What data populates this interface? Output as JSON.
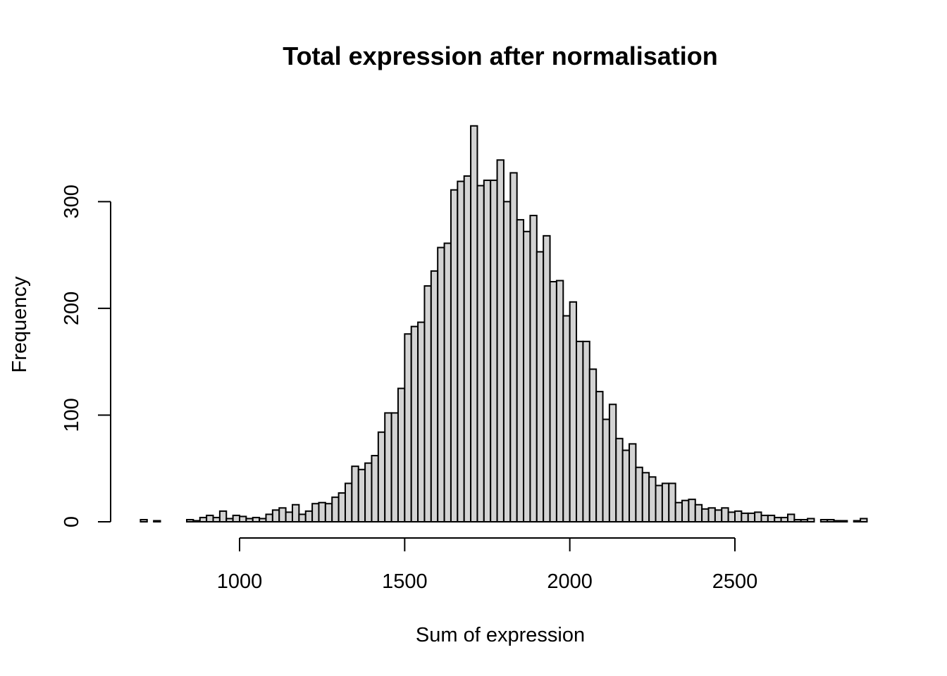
{
  "chart_data": {
    "type": "bar",
    "title": "Total expression after normalisation",
    "xlabel": "Sum of expression",
    "ylabel": "Frequency",
    "bin_width": 20,
    "x_start": 700,
    "xlim": [
      700,
      2880
    ],
    "ylim": [
      0,
      400
    ],
    "x_ticks": [
      1000,
      1500,
      2000,
      2500
    ],
    "y_ticks": [
      0,
      100,
      200,
      300
    ],
    "values": [
      2,
      0,
      1,
      0,
      0,
      0,
      0,
      2,
      1,
      4,
      6,
      4,
      10,
      3,
      6,
      5,
      3,
      4,
      3,
      7,
      11,
      13,
      9,
      16,
      7,
      10,
      17,
      18,
      17,
      23,
      27,
      36,
      52,
      49,
      55,
      62,
      84,
      102,
      102,
      125,
      176,
      183,
      187,
      221,
      235,
      257,
      261,
      311,
      319,
      324,
      371,
      315,
      320,
      320,
      339,
      300,
      327,
      283,
      272,
      287,
      253,
      268,
      225,
      226,
      193,
      206,
      169,
      169,
      143,
      122,
      96,
      110,
      78,
      67,
      73,
      51,
      46,
      42,
      34,
      36,
      36,
      18,
      20,
      21,
      16,
      12,
      13,
      11,
      13,
      9,
      10,
      8,
      8,
      9,
      6,
      6,
      4,
      4,
      7,
      2,
      2,
      3,
      0,
      2,
      2,
      1,
      1,
      0,
      1,
      3
    ]
  }
}
